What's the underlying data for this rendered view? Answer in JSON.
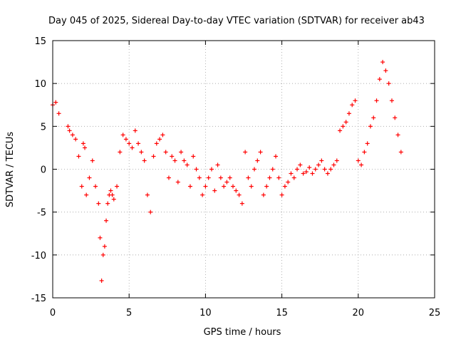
{
  "chart_data": {
    "type": "scatter",
    "title": "Day 045 of 2025, Sidereal Day-to-day VTEC variation (SDTVAR) for receiver ab43",
    "xlabel": "GPS time / hours",
    "ylabel": "SDTVAR / TECUs",
    "xlim": [
      0,
      25
    ],
    "ylim": [
      -15,
      15
    ],
    "xticks": [
      "0",
      "5",
      "10",
      "15",
      "20",
      "25"
    ],
    "yticks": [
      "15",
      "10",
      "5",
      "0",
      "-5",
      "-10",
      "-15"
    ],
    "grid": true,
    "marker": "+",
    "color": "#ff0000",
    "series": [
      {
        "name": "SDTVAR",
        "x": [
          0.0,
          0.2,
          0.4,
          1.0,
          1.1,
          1.3,
          1.5,
          1.7,
          1.9,
          2.0,
          2.1,
          2.2,
          2.4,
          2.6,
          2.8,
          3.0,
          3.1,
          3.2,
          3.3,
          3.4,
          3.5,
          3.6,
          3.7,
          3.8,
          3.9,
          4.0,
          4.2,
          4.4,
          4.6,
          4.8,
          5.0,
          5.2,
          5.4,
          5.6,
          5.8,
          6.0,
          6.2,
          6.4,
          6.6,
          6.8,
          7.0,
          7.2,
          7.4,
          7.6,
          7.8,
          8.0,
          8.2,
          8.4,
          8.6,
          8.8,
          9.0,
          9.2,
          9.4,
          9.6,
          9.8,
          10.0,
          10.2,
          10.4,
          10.6,
          10.8,
          11.0,
          11.2,
          11.4,
          11.6,
          11.8,
          12.0,
          12.2,
          12.4,
          12.6,
          12.8,
          13.0,
          13.2,
          13.4,
          13.6,
          13.8,
          14.0,
          14.2,
          14.4,
          14.6,
          14.8,
          15.0,
          15.2,
          15.4,
          15.6,
          15.8,
          16.0,
          16.2,
          16.4,
          16.6,
          16.8,
          17.0,
          17.2,
          17.4,
          17.6,
          17.8,
          18.0,
          18.2,
          18.4,
          18.6,
          18.8,
          19.0,
          19.2,
          19.4,
          19.6,
          19.8,
          20.0,
          20.2,
          20.4,
          20.6,
          20.8,
          21.0,
          21.2,
          21.4,
          21.6,
          21.8,
          22.0,
          22.2,
          22.4,
          22.6,
          22.8
        ],
        "y": [
          7.5,
          7.8,
          6.5,
          5.0,
          4.5,
          4.0,
          3.5,
          1.5,
          -2.0,
          3.0,
          2.5,
          -3.0,
          -1.0,
          1.0,
          -2.0,
          -4.0,
          -8.0,
          -13.0,
          -10.0,
          -9.0,
          -6.0,
          -4.0,
          -3.0,
          -2.5,
          -3.0,
          -3.5,
          -2.0,
          2.0,
          4.0,
          3.5,
          3.0,
          2.5,
          4.5,
          3.0,
          2.0,
          1.0,
          -3.0,
          -5.0,
          1.5,
          3.0,
          3.5,
          4.0,
          2.0,
          -1.0,
          1.5,
          1.0,
          -1.5,
          2.0,
          1.0,
          0.5,
          -2.0,
          1.5,
          0.0,
          -1.0,
          -3.0,
          -2.0,
          -1.0,
          0.0,
          -2.5,
          0.5,
          -1.0,
          -2.0,
          -1.5,
          -1.0,
          -2.0,
          -2.5,
          -3.0,
          -4.0,
          2.0,
          -1.0,
          -2.0,
          0.0,
          1.0,
          2.0,
          -3.0,
          -2.0,
          -1.0,
          0.0,
          1.5,
          -1.0,
          -3.0,
          -2.0,
          -1.5,
          -0.5,
          -1.0,
          0.0,
          0.5,
          -0.5,
          -0.3,
          0.2,
          -0.5,
          0.0,
          0.5,
          1.0,
          0.0,
          -0.5,
          0.0,
          0.5,
          1.0,
          4.5,
          5.0,
          5.5,
          6.5,
          7.5,
          8.0,
          1.0,
          0.5,
          2.0,
          3.0,
          5.0,
          6.0,
          8.0,
          10.5,
          12.5,
          11.5,
          10.0,
          8.0,
          6.0,
          4.0,
          2.0
        ]
      }
    ]
  }
}
